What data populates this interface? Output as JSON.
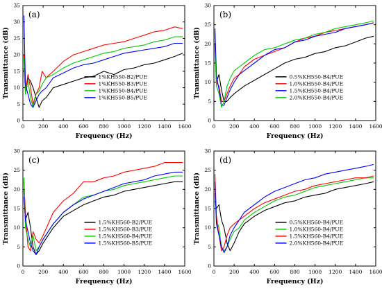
{
  "chart_data": [
    {
      "type": "line",
      "panel_label": "(a)",
      "xlabel": "Frequency (Hz)",
      "ylabel": "Transmittance (dB)",
      "xlim": [
        0,
        1600
      ],
      "ylim": [
        0,
        35
      ],
      "xticks": [
        0,
        200,
        400,
        600,
        800,
        1000,
        1200,
        1400,
        1600
      ],
      "yticks": [
        0,
        5,
        10,
        15,
        20,
        25,
        30,
        35
      ],
      "legend_position": "lower-right",
      "series": [
        {
          "name": "1%KH550-B2/PUE",
          "color": "#000000",
          "x": [
            10,
            25,
            50,
            75,
            100,
            130,
            160,
            190,
            230,
            300,
            400,
            500,
            600,
            700,
            800,
            900,
            1000,
            1100,
            1200,
            1300,
            1400,
            1500,
            1580
          ],
          "y": [
            16,
            9,
            13,
            12,
            10,
            7,
            4,
            6,
            7,
            10,
            11,
            12,
            13,
            13.5,
            15,
            14,
            15.5,
            16,
            17,
            17.5,
            18.5,
            19.5,
            20.5
          ]
        },
        {
          "name": "1%KH550-B3/PUE",
          "color": "#ff0000",
          "x": [
            10,
            25,
            50,
            75,
            100,
            130,
            160,
            190,
            230,
            300,
            400,
            500,
            600,
            700,
            800,
            900,
            1000,
            1100,
            1200,
            1300,
            1400,
            1500,
            1580
          ],
          "y": [
            20,
            9,
            14,
            10,
            5,
            8,
            10,
            15,
            13,
            15,
            18,
            20,
            21,
            22,
            23,
            23.5,
            24,
            25,
            26,
            27,
            27.5,
            28.5,
            28
          ]
        },
        {
          "name": "1%KH550-B4/PUE",
          "color": "#00cc00",
          "x": [
            10,
            25,
            50,
            75,
            100,
            130,
            160,
            190,
            230,
            300,
            400,
            500,
            600,
            700,
            800,
            900,
            1000,
            1100,
            1200,
            1300,
            1400,
            1500,
            1580
          ],
          "y": [
            19,
            8,
            12,
            7,
            4,
            8,
            9,
            11,
            13,
            14,
            16,
            17.5,
            18.5,
            19.5,
            20.5,
            21,
            22,
            22.5,
            23,
            24,
            24.5,
            25.5,
            25.5
          ]
        },
        {
          "name": "1%KH550-B5/PUE",
          "color": "#0000ff",
          "x": [
            10,
            25,
            50,
            75,
            100,
            130,
            160,
            190,
            230,
            300,
            400,
            500,
            600,
            700,
            800,
            900,
            1000,
            1100,
            1200,
            1300,
            1400,
            1500,
            1580
          ],
          "y": [
            32,
            11,
            8,
            5,
            4,
            6,
            8,
            9,
            10,
            13,
            14.5,
            16,
            17,
            17.5,
            18.5,
            19.5,
            20.5,
            21,
            21.5,
            22,
            22.5,
            23.5,
            23.5
          ]
        }
      ]
    },
    {
      "type": "line",
      "panel_label": "(b)",
      "xlabel": "Frequency (Hz)",
      "ylabel": "Transmittance (dB)",
      "xlim": [
        0,
        1600
      ],
      "ylim": [
        0,
        30
      ],
      "xticks": [
        0,
        200,
        400,
        600,
        800,
        1000,
        1200,
        1400,
        1600
      ],
      "yticks": [
        0,
        5,
        10,
        15,
        20,
        25,
        30
      ],
      "legend_position": "lower-right",
      "series": [
        {
          "name": "0.5%KH550-B4/PUE",
          "color": "#000000",
          "x": [
            10,
            25,
            50,
            75,
            100,
            130,
            160,
            200,
            250,
            300,
            400,
            500,
            600,
            700,
            800,
            900,
            1000,
            1100,
            1200,
            1300,
            1400,
            1500,
            1580
          ],
          "y": [
            20,
            10,
            12,
            8,
            5,
            5,
            6,
            7,
            8,
            9,
            10.5,
            12,
            13.5,
            15,
            16,
            16.5,
            17.5,
            18,
            19,
            19.5,
            20.5,
            21.5,
            22
          ]
        },
        {
          "name": "1.0%KH550-B4/PUE",
          "color": "#ff0000",
          "x": [
            10,
            25,
            50,
            75,
            100,
            130,
            160,
            200,
            250,
            300,
            400,
            500,
            600,
            700,
            800,
            900,
            1000,
            1100,
            1200,
            1300,
            1400,
            1500,
            1580
          ],
          "y": [
            23,
            10,
            9,
            5,
            5,
            7,
            9,
            11,
            12,
            14,
            16,
            17,
            18,
            19,
            20.5,
            21.5,
            22,
            23,
            23.5,
            24,
            24.5,
            25,
            25.5
          ]
        },
        {
          "name": "1.5%KH550-B4/PUE",
          "color": "#0000ff",
          "x": [
            10,
            25,
            50,
            75,
            100,
            130,
            160,
            200,
            250,
            300,
            400,
            500,
            600,
            700,
            800,
            900,
            1000,
            1100,
            1200,
            1300,
            1400,
            1500,
            1580
          ],
          "y": [
            24,
            12,
            8,
            4,
            4,
            6,
            8,
            10,
            12,
            13,
            15,
            17,
            18.5,
            19,
            20.5,
            21,
            22,
            22.5,
            23,
            24,
            24.5,
            25,
            25.5
          ]
        },
        {
          "name": "2.0%KH550-B4/PUE",
          "color": "#00cc00",
          "x": [
            10,
            25,
            50,
            75,
            100,
            130,
            160,
            200,
            250,
            300,
            400,
            500,
            600,
            700,
            800,
            900,
            1000,
            1100,
            1200,
            1300,
            1400,
            1500,
            1580
          ],
          "y": [
            18,
            9,
            7,
            3.5,
            5,
            9,
            11,
            13,
            14,
            15,
            17,
            18.5,
            19,
            20,
            21,
            21.5,
            22.5,
            23,
            24,
            24.5,
            25,
            25.5,
            26
          ]
        }
      ]
    },
    {
      "type": "line",
      "panel_label": "(c)",
      "xlabel": "Frequency (Hz)",
      "ylabel": "Transmittance (dB)",
      "xlim": [
        0,
        1600
      ],
      "ylim": [
        0,
        30
      ],
      "xticks": [
        0,
        200,
        400,
        600,
        800,
        1000,
        1200,
        1400,
        1600
      ],
      "yticks": [
        0,
        5,
        10,
        15,
        20,
        25,
        30
      ],
      "legend_position": "lower-right",
      "series": [
        {
          "name": "1.5%KH560-B2/PUE",
          "color": "#000000",
          "x": [
            10,
            25,
            50,
            75,
            100,
            130,
            160,
            200,
            250,
            300,
            400,
            500,
            600,
            700,
            800,
            900,
            1000,
            1100,
            1200,
            1300,
            1400,
            1500,
            1580
          ],
          "y": [
            20,
            12,
            14,
            10,
            5,
            3,
            4,
            6,
            8,
            10,
            13,
            14.5,
            16,
            17,
            18,
            18.5,
            19.5,
            20,
            20.5,
            21,
            21.5,
            22,
            22
          ]
        },
        {
          "name": "1.5%KH560-B3/PUE",
          "color": "#ff0000",
          "x": [
            10,
            25,
            50,
            75,
            100,
            130,
            160,
            200,
            250,
            300,
            400,
            500,
            600,
            700,
            800,
            900,
            1000,
            1100,
            1200,
            1300,
            1400,
            1500,
            1580
          ],
          "y": [
            22,
            14,
            5,
            4,
            9,
            7,
            6,
            8,
            11,
            14,
            17,
            19,
            22,
            22,
            23,
            23.5,
            24.5,
            25,
            25.5,
            26,
            27,
            27,
            27
          ]
        },
        {
          "name": "1.5%KH560-B4/PUE",
          "color": "#00cc00",
          "x": [
            10,
            25,
            50,
            75,
            100,
            130,
            160,
            200,
            250,
            300,
            400,
            500,
            600,
            700,
            800,
            900,
            1000,
            1100,
            1200,
            1300,
            1400,
            1500,
            1580
          ],
          "y": [
            23,
            10,
            7,
            5,
            8,
            4,
            5,
            7,
            9,
            11,
            14,
            16,
            18,
            18.5,
            19.5,
            20,
            21,
            21.5,
            22,
            22.5,
            23,
            23.5,
            23.5
          ]
        },
        {
          "name": "1.5%KH560-B5/PUE",
          "color": "#0000ff",
          "x": [
            10,
            25,
            50,
            75,
            100,
            130,
            160,
            200,
            250,
            300,
            400,
            500,
            600,
            700,
            800,
            900,
            1000,
            1100,
            1200,
            1300,
            1400,
            1500,
            1580
          ],
          "y": [
            18,
            12,
            9,
            6,
            4,
            3,
            5,
            7,
            9,
            11,
            14,
            16,
            17.5,
            18.5,
            19.5,
            20.5,
            21.5,
            22,
            22.5,
            23.5,
            24,
            24.5,
            24.5
          ]
        }
      ]
    },
    {
      "type": "line",
      "panel_label": "(d)",
      "xlabel": "Frequency (Hz)",
      "ylabel": "Transmittance (dB)",
      "xlim": [
        0,
        1600
      ],
      "ylim": [
        0,
        30
      ],
      "xticks": [
        0,
        200,
        400,
        600,
        800,
        1000,
        1200,
        1400,
        1600
      ],
      "yticks": [
        0,
        5,
        10,
        15,
        20,
        25,
        30
      ],
      "legend_position": "lower-right",
      "series": [
        {
          "name": "0.5%KH560-B4/PUE",
          "color": "#000000",
          "x": [
            10,
            25,
            50,
            75,
            100,
            130,
            160,
            200,
            250,
            300,
            400,
            500,
            600,
            700,
            800,
            900,
            1000,
            1100,
            1200,
            1300,
            1400,
            1500,
            1580
          ],
          "y": [
            17,
            15,
            16,
            12,
            10,
            6,
            4,
            6,
            9,
            11,
            13,
            14.5,
            15.5,
            16.5,
            17,
            18,
            18.5,
            19,
            20,
            20.5,
            21,
            21.5,
            22
          ]
        },
        {
          "name": "1.0%KH560-B4/PUE",
          "color": "#00cc00",
          "x": [
            10,
            25,
            50,
            75,
            100,
            130,
            160,
            200,
            250,
            300,
            400,
            500,
            600,
            700,
            800,
            900,
            1000,
            1100,
            1200,
            1300,
            1400,
            1500,
            1580
          ],
          "y": [
            19,
            12,
            10,
            5,
            4,
            5,
            7,
            9,
            10,
            12,
            14,
            15.5,
            17,
            18,
            18.5,
            19.5,
            20.5,
            21,
            21.5,
            22,
            22.5,
            23,
            23
          ]
        },
        {
          "name": "1.5%KH560-B4/PUE",
          "color": "#ff0000",
          "x": [
            10,
            25,
            50,
            75,
            100,
            130,
            160,
            200,
            250,
            300,
            400,
            500,
            600,
            700,
            800,
            900,
            1000,
            1100,
            1200,
            1300,
            1400,
            1500,
            1580
          ],
          "y": [
            24,
            13,
            8,
            4,
            5,
            8,
            10,
            11,
            12,
            13,
            15,
            16.5,
            17.5,
            18.5,
            19.5,
            20,
            21,
            21.5,
            22,
            22.5,
            23,
            23,
            23.5
          ]
        },
        {
          "name": "2.0%KH560-B4/PUE",
          "color": "#0000ff",
          "x": [
            10,
            25,
            50,
            75,
            100,
            130,
            160,
            200,
            250,
            300,
            400,
            500,
            600,
            700,
            800,
            900,
            1000,
            1100,
            1200,
            1300,
            1400,
            1500,
            1580
          ],
          "y": [
            22,
            11,
            8,
            5,
            3.5,
            5,
            8,
            10,
            12,
            14,
            16,
            18,
            19.5,
            20.5,
            21.5,
            22.5,
            23,
            24,
            24.5,
            25,
            25.5,
            26,
            26.5
          ]
        }
      ]
    }
  ]
}
